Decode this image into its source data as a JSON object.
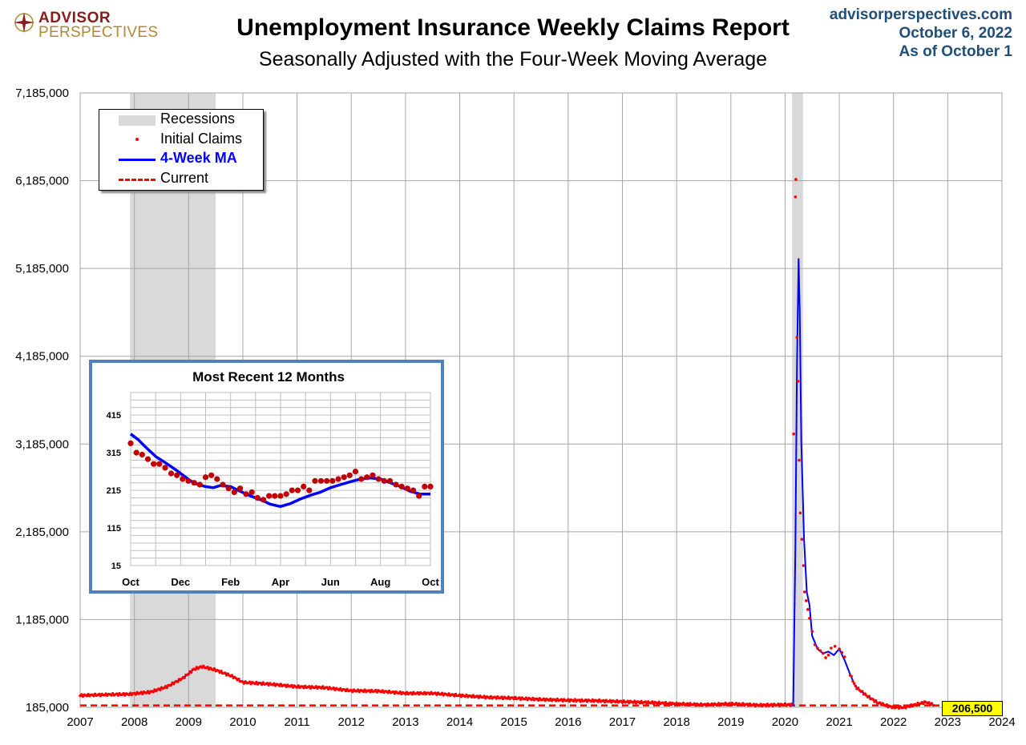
{
  "header": {
    "logo_line1": "ADVISOR",
    "logo_line2": "PERSPECTIVES",
    "title": "Unemployment Insurance Weekly Claims Report",
    "subtitle": "Seasonally Adjusted with the Four-Week Moving Average",
    "source": "advisorperspectives.com",
    "date": "October 6, 2022",
    "as_of": "As of October 1"
  },
  "legend": {
    "recessions": "Recessions",
    "initial_claims": "Initial Claims",
    "ma": "4-Week MA",
    "current": "Current"
  },
  "current_label": "206,500",
  "colors": {
    "ma_line": "#0000ff",
    "claims_dots": "#ff0000",
    "recession_shade": "#d9d9d9",
    "current_line": "#ff0000",
    "inset_border": "#4f81bd",
    "inset_dots": "#c00000"
  },
  "chart_data": [
    {
      "type": "line",
      "title": "Unemployment Insurance Weekly Claims Report",
      "subtitle": "Seasonally Adjusted with the Four-Week Moving Average",
      "x_ticks": [
        "2007",
        "2008",
        "2009",
        "2010",
        "2011",
        "2012",
        "2013",
        "2014",
        "2015",
        "2016",
        "2017",
        "2018",
        "2019",
        "2020",
        "2021",
        "2022",
        "2023",
        "2024"
      ],
      "y_ticks": [
        "185,000",
        "1,185,000",
        "2,185,000",
        "3,185,000",
        "4,185,000",
        "5,185,000",
        "6,185,000",
        "7,185,000"
      ],
      "xlim": [
        2007,
        2024
      ],
      "ylim": [
        185000,
        7185000
      ],
      "grid": true,
      "legend_position": "top-left",
      "recessions": [
        [
          2007.92,
          2009.5
        ],
        [
          2020.13,
          2020.33
        ]
      ],
      "current_value": 206500,
      "series": [
        {
          "name": "4-Week MA",
          "x": [
            2007.0,
            2007.5,
            2007.9,
            2008.3,
            2008.6,
            2008.9,
            2009.1,
            2009.25,
            2009.5,
            2009.8,
            2010.0,
            2010.5,
            2011.0,
            2011.5,
            2012.0,
            2012.5,
            2013.0,
            2013.5,
            2014.0,
            2014.5,
            2015.0,
            2015.5,
            2016.0,
            2016.5,
            2017.0,
            2017.5,
            2018.0,
            2018.5,
            2019.0,
            2019.5,
            2020.0,
            2020.15,
            2020.19,
            2020.22,
            2020.25,
            2020.27,
            2020.3,
            2020.35,
            2020.4,
            2020.45,
            2020.5,
            2020.6,
            2020.7,
            2020.8,
            2020.9,
            2021.0,
            2021.1,
            2021.2,
            2021.3,
            2021.5,
            2021.7,
            2021.9,
            2022.0,
            2022.2,
            2022.4,
            2022.6,
            2022.76
          ],
          "values": [
            320000,
            330000,
            335000,
            360000,
            420000,
            520000,
            620000,
            650000,
            610000,
            540000,
            470000,
            450000,
            420000,
            410000,
            375000,
            370000,
            345000,
            345000,
            320000,
            300000,
            290000,
            275000,
            265000,
            260000,
            250000,
            240000,
            225000,
            215000,
            225000,
            210000,
            215000,
            215000,
            2000000,
            4100000,
            5300000,
            4700000,
            3200000,
            2100000,
            1500000,
            1350000,
            1000000,
            850000,
            800000,
            820000,
            780000,
            850000,
            720000,
            560000,
            420000,
            320000,
            240000,
            200000,
            185000,
            185000,
            215000,
            245000,
            207000
          ]
        },
        {
          "name": "Initial Claims",
          "x": [
            2020.16,
            2020.19,
            2020.2,
            2020.22,
            2020.24,
            2020.26,
            2020.28,
            2020.31,
            2020.34,
            2020.36,
            2020.39,
            2020.42,
            2020.45,
            2020.5,
            2020.55,
            2020.6,
            2020.65,
            2020.7,
            2020.75,
            2020.8,
            2020.85,
            2020.92,
            2021.0,
            2021.05,
            2021.1
          ],
          "values": [
            3300000,
            6000000,
            6200000,
            4400000,
            3900000,
            3000000,
            2400000,
            2100000,
            1800000,
            1500000,
            1400000,
            1300000,
            1200000,
            1050000,
            900000,
            860000,
            830000,
            800000,
            750000,
            780000,
            860000,
            880000,
            850000,
            810000,
            760000
          ]
        }
      ]
    },
    {
      "type": "line",
      "title": "Most Recent 12 Months",
      "x_ticks": [
        "Oct",
        "Dec",
        "Feb",
        "Apr",
        "Jun",
        "Aug",
        "Oct"
      ],
      "y_ticks": [
        "15",
        "115",
        "215",
        "315",
        "415"
      ],
      "xlim": [
        0,
        12
      ],
      "ylim": [
        15,
        475
      ],
      "grid": true,
      "series": [
        {
          "name": "4-Week MA",
          "x": [
            0,
            0.3,
            0.6,
            1.0,
            1.4,
            1.8,
            2.1,
            2.4,
            2.7,
            3.0,
            3.3,
            3.6,
            4.0,
            4.4,
            4.8,
            5.2,
            5.6,
            6.0,
            6.4,
            6.8,
            7.2,
            7.6,
            8.0,
            8.4,
            8.8,
            9.2,
            9.6,
            10.0,
            10.4,
            10.8,
            11.2,
            11.6,
            12.0
          ],
          "values": [
            365,
            350,
            330,
            305,
            288,
            270,
            255,
            240,
            230,
            225,
            222,
            228,
            225,
            212,
            200,
            190,
            178,
            172,
            180,
            192,
            202,
            210,
            222,
            230,
            238,
            245,
            248,
            245,
            235,
            225,
            212,
            205,
            205
          ]
        },
        {
          "name": "Initial Claims",
          "x": [
            0,
            0.23,
            0.46,
            0.69,
            0.92,
            1.15,
            1.38,
            1.62,
            1.85,
            2.08,
            2.31,
            2.54,
            2.77,
            3.0,
            3.23,
            3.46,
            3.69,
            3.92,
            4.15,
            4.38,
            4.62,
            4.85,
            5.08,
            5.31,
            5.54,
            5.77,
            6.0,
            6.23,
            6.46,
            6.69,
            6.92,
            7.15,
            7.38,
            7.62,
            7.85,
            8.08,
            8.31,
            8.54,
            8.77,
            9.0,
            9.23,
            9.46,
            9.69,
            9.92,
            10.15,
            10.38,
            10.62,
            10.85,
            11.08,
            11.31,
            11.54,
            11.77,
            12.0
          ],
          "values": [
            340,
            315,
            310,
            298,
            285,
            285,
            275,
            260,
            255,
            245,
            240,
            235,
            230,
            250,
            255,
            245,
            230,
            220,
            210,
            220,
            205,
            210,
            195,
            190,
            200,
            200,
            200,
            205,
            215,
            215,
            225,
            215,
            240,
            240,
            240,
            240,
            245,
            250,
            255,
            265,
            245,
            250,
            255,
            245,
            240,
            240,
            230,
            225,
            220,
            215,
            200,
            225,
            225
          ]
        }
      ]
    }
  ]
}
